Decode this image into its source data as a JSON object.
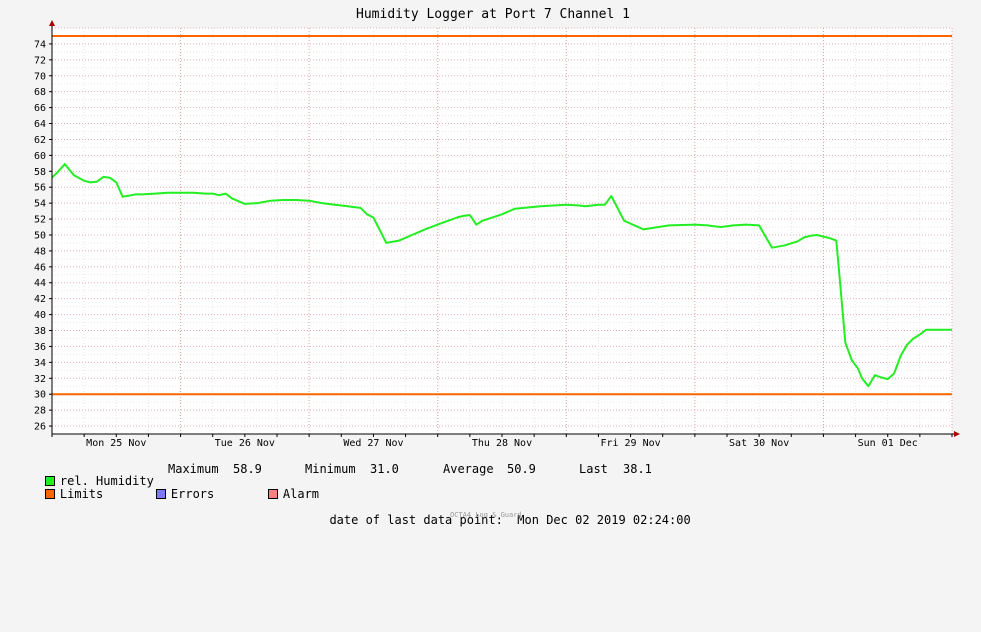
{
  "chart_data": {
    "type": "line",
    "title": "Humidity Logger at Port 7 Channel 1",
    "x_range_days": [
      0,
      7.0
    ],
    "x_start_label": "Mon 25 Nov",
    "x_tick_labels": [
      "Mon 25 Nov",
      "Tue 26 Nov",
      "Wed 27 Nov",
      "Thu 28 Nov",
      "Fri 29 Nov",
      "Sat 30 Nov",
      "Sun 01 Dec"
    ],
    "ylim": [
      25,
      76
    ],
    "y_ticks": [
      26,
      28,
      30,
      32,
      34,
      36,
      38,
      40,
      42,
      44,
      46,
      48,
      50,
      52,
      54,
      56,
      58,
      60,
      62,
      64,
      66,
      68,
      70,
      72,
      74
    ],
    "grid": true,
    "limits": [
      {
        "name": "upper",
        "value": 75,
        "color": "#ff6600"
      },
      {
        "name": "lower",
        "value": 30,
        "color": "#ff6600"
      }
    ],
    "series": [
      {
        "name": "rel. Humidity",
        "color": "#22ee22",
        "x": [
          0.0,
          0.05,
          0.1,
          0.13,
          0.17,
          0.25,
          0.3,
          0.35,
          0.4,
          0.45,
          0.5,
          0.55,
          0.58,
          0.62,
          0.65,
          0.7,
          0.8,
          0.9,
          1.0,
          1.1,
          1.2,
          1.25,
          1.3,
          1.35,
          1.4,
          1.5,
          1.6,
          1.7,
          1.8,
          1.9,
          2.0,
          2.1,
          2.2,
          2.25,
          2.3,
          2.35,
          2.4,
          2.45,
          2.5,
          2.6,
          2.7,
          2.8,
          2.9,
          3.0,
          3.05,
          3.1,
          3.15,
          3.2,
          3.25,
          3.3,
          3.35,
          3.5,
          3.6,
          3.8,
          4.0,
          4.1,
          4.15,
          4.2,
          4.25,
          4.3,
          4.35,
          4.45,
          4.6,
          4.8,
          5.0,
          5.1,
          5.15,
          5.2,
          5.25,
          5.3,
          5.4,
          5.5,
          5.6,
          5.7,
          5.8,
          5.85,
          5.9,
          5.95,
          6.0,
          6.05,
          6.1,
          6.13,
          6.17,
          6.22,
          6.27,
          6.3,
          6.35,
          6.4,
          6.45,
          6.5,
          6.55,
          6.6,
          6.65,
          6.7,
          6.75,
          6.8,
          6.85,
          6.9,
          6.95,
          7.0
        ],
        "values": [
          57.2,
          58.0,
          58.9,
          58.3,
          57.5,
          56.8,
          56.6,
          56.7,
          57.3,
          57.2,
          56.6,
          54.8,
          54.9,
          55.0,
          55.1,
          55.1,
          55.2,
          55.3,
          55.3,
          55.3,
          55.2,
          55.2,
          55.0,
          55.2,
          54.6,
          53.9,
          54.0,
          54.3,
          54.4,
          54.4,
          54.3,
          54.0,
          53.8,
          53.7,
          53.6,
          53.5,
          53.4,
          52.6,
          52.2,
          49.0,
          49.3,
          50.0,
          50.7,
          51.3,
          51.6,
          51.9,
          52.2,
          52.4,
          52.5,
          51.3,
          51.8,
          52.6,
          53.3,
          53.6,
          53.8,
          53.7,
          53.6,
          53.7,
          53.8,
          53.8,
          54.9,
          51.8,
          50.7,
          51.2,
          51.3,
          51.2,
          51.1,
          51.0,
          51.1,
          51.2,
          51.3,
          51.2,
          48.4,
          48.7,
          49.2,
          49.7,
          49.9,
          50.0,
          49.8,
          49.6,
          49.3,
          44.0,
          36.5,
          34.3,
          33.2,
          32.0,
          31.0,
          32.4,
          32.1,
          31.9,
          32.6,
          34.8,
          36.2,
          37.0,
          37.5,
          38.1,
          38.1,
          38.1,
          38.1,
          38.1
        ]
      }
    ],
    "legend_placement": "bottom-left"
  },
  "legend": {
    "humidity_label": "rel. Humidity",
    "limits_label": "Limits",
    "errors_label": "Errors",
    "alarm_label": "Alarm",
    "humidity_color": "#22ee22",
    "limits_color": "#ff6600",
    "errors_color": "#7a7aff",
    "alarm_color": "#ff8080"
  },
  "stats": {
    "maximum_label": "Maximum",
    "maximum_value": "58.9",
    "minimum_label": "Minimum",
    "minimum_value": "31.0",
    "average_label": "Average",
    "average_value": "50.9",
    "last_label": "Last",
    "last_value": "38.1"
  },
  "footer": {
    "last_point_label": "date of last data point:",
    "last_point_value": "Mon Dec 02 2019 02:24:00",
    "watermark": "OCTA4 Log & Guard"
  }
}
